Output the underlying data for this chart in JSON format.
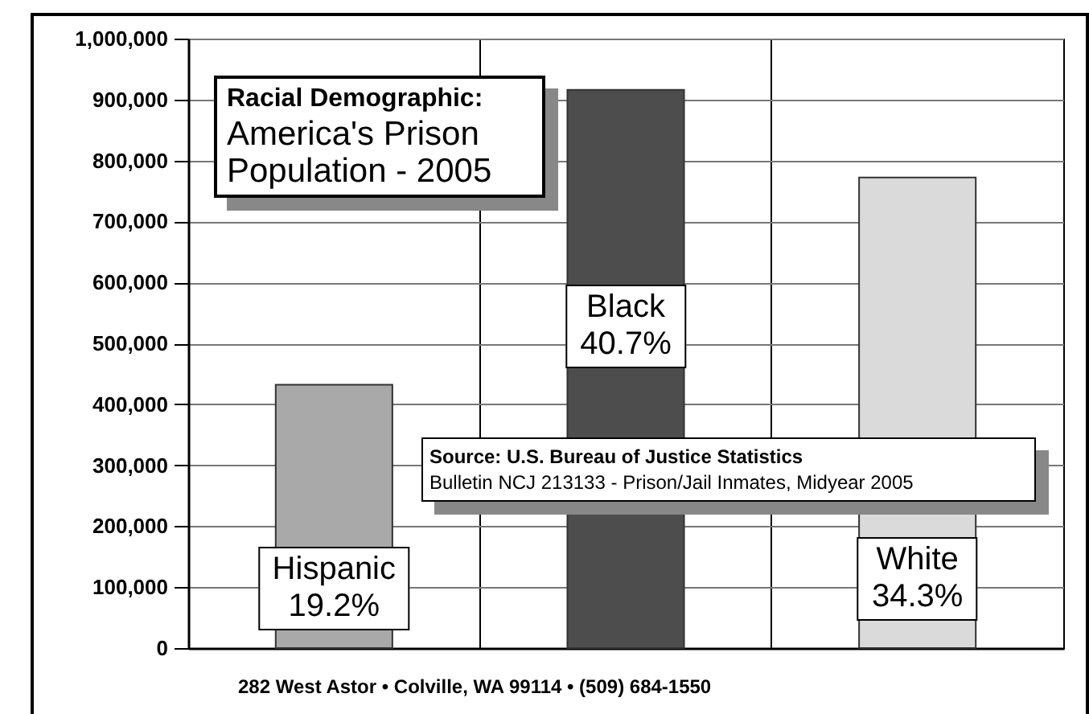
{
  "chart_data": {
    "type": "bar",
    "title": "Racial Demographic:",
    "subtitle": "America's Prison Population - 2005",
    "categories": [
      "Hispanic",
      "Black",
      "White"
    ],
    "values": [
      432000,
      916000,
      772000
    ],
    "colors": [
      "#a9a9a9",
      "#4d4d4d",
      "#dadada"
    ],
    "ylim": [
      0,
      1000000
    ],
    "yticks": [
      0,
      {
        "value": 100000,
        "label": "100,000"
      },
      {
        "value": 200000,
        "label": "200,000"
      },
      {
        "value": 300000,
        "label": "300,000"
      },
      {
        "value": 400000,
        "label": "400,000"
      },
      {
        "value": 500000,
        "label": "500,000"
      },
      {
        "value": 600000,
        "label": "600,000"
      },
      {
        "value": 700000,
        "label": "700,000"
      },
      {
        "value": 800000,
        "label": "800,000"
      },
      {
        "value": 900000,
        "label": "900,000"
      },
      {
        "value": 1000000,
        "label": "1,000,000"
      }
    ],
    "grid": true,
    "annotations": [
      "19.2%",
      "40.7%",
      "34.3%",
      "Source: U.S. Bureau of Justice Statistics",
      "Bulletin NCJ 213133 - Prison/Jail Inmates, Midyear 2005",
      "282 West Astor • Colville, WA 99114 • (509) 684-1550"
    ]
  }
}
